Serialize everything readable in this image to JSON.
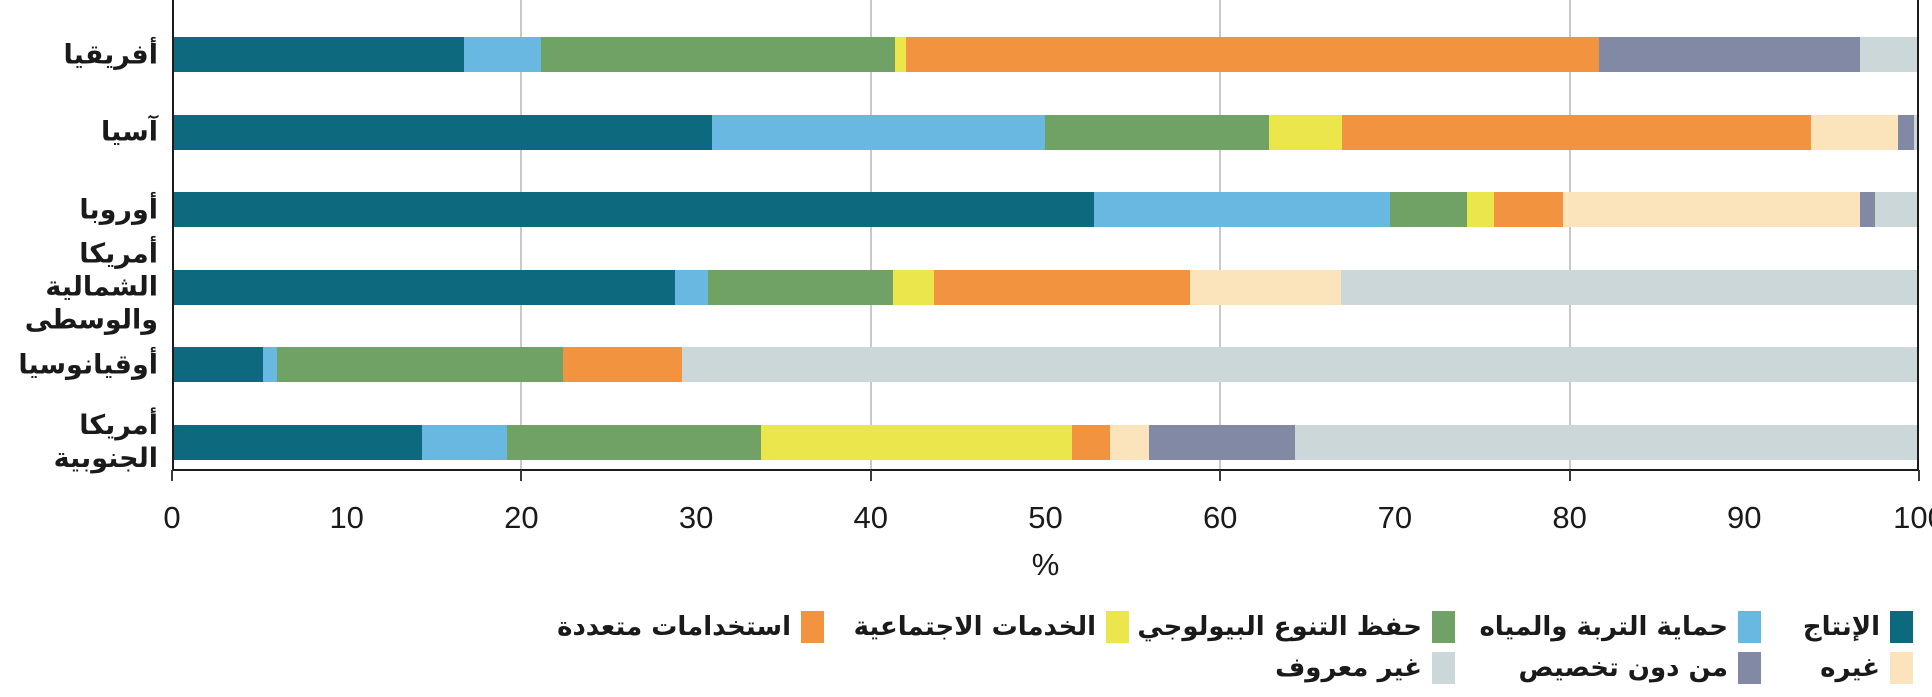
{
  "chart_data": {
    "type": "bar",
    "orientation": "horizontal",
    "stacked": true,
    "title": "",
    "xlabel": "%",
    "xlim": [
      0,
      100
    ],
    "x_ticks": [
      0,
      10,
      20,
      30,
      40,
      50,
      60,
      70,
      80,
      90,
      100
    ],
    "gridlines_at": [
      20,
      40,
      60,
      80
    ],
    "grid": true,
    "legend_position": "bottom",
    "categories": [
      "أفريقيا",
      "آسيا",
      "أوروبا",
      "أمريكا الشمالية والوسطى",
      "أوقيانوسيا",
      "أمريكا الجنوبية"
    ],
    "categories_display": [
      "أفريقيا",
      "آسيا",
      "أوروبا",
      "أمريكا الشمالية\nوالوسطى",
      "أوقيانوسيا",
      "أمريكا الجنوبية"
    ],
    "series": [
      {
        "name": "الإنتاج",
        "color": "#0d697d",
        "values": [
          16.7,
          30.9,
          52.8,
          28.8,
          5.2,
          14.3
        ]
      },
      {
        "name": "حماية التربة والمياه",
        "color": "#69b8e2",
        "values": [
          4.4,
          19.1,
          16.9,
          1.9,
          0.8,
          4.9
        ]
      },
      {
        "name": "حفظ التنوع البيولوجي",
        "color": "#70a266",
        "values": [
          20.3,
          12.8,
          4.4,
          10.6,
          16.4,
          14.5
        ]
      },
      {
        "name": "الخدمات الاجتماعية",
        "color": "#ece64d",
        "values": [
          0.6,
          4.2,
          1.6,
          2.3,
          0.0,
          17.8
        ]
      },
      {
        "name": "استخدامات متعددة",
        "color": "#f29340",
        "values": [
          39.7,
          26.8,
          3.9,
          14.7,
          6.8,
          2.2
        ]
      },
      {
        "name": "غيره",
        "color": "#fbe4bc",
        "values": [
          0.0,
          5.0,
          17.0,
          8.6,
          0.0,
          2.2
        ]
      },
      {
        "name": "من دون تخصيص",
        "color": "#8189a4",
        "values": [
          14.9,
          0.9,
          0.9,
          0.0,
          0.0,
          8.4
        ]
      },
      {
        "name": "غير معروف",
        "color": "#ccd7d9",
        "values": [
          3.4,
          0.3,
          2.5,
          33.1,
          70.8,
          35.7
        ]
      }
    ],
    "legend_rows": [
      [
        0,
        1,
        2,
        3,
        4
      ],
      [
        5,
        6,
        7
      ]
    ],
    "axis_color": "#1c1c1c",
    "gridline_color": "#c9c9c9"
  }
}
